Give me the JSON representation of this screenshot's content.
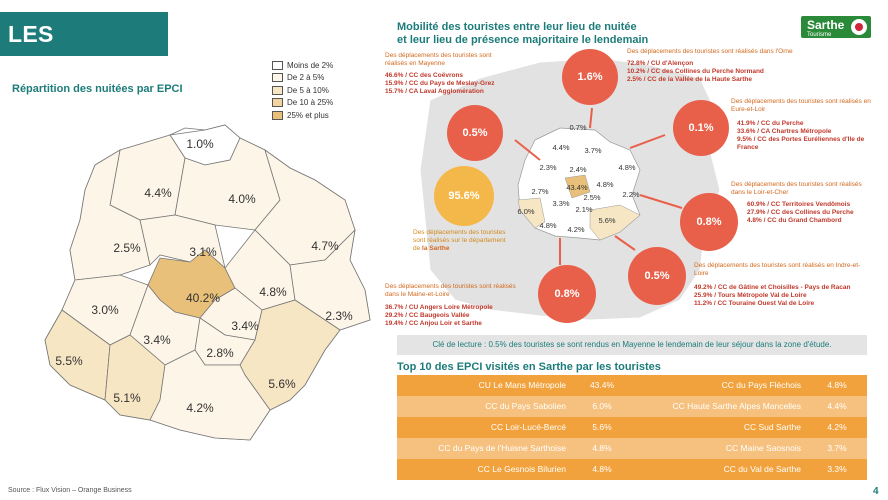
{
  "title": "LES TOURISTES",
  "left_subtitle": "Répartition des nuitées par EPCI",
  "legend": [
    {
      "label": "Moins de 2%",
      "color": "#ffffff"
    },
    {
      "label": "De 2 à 5%",
      "color": "#fdf6e8"
    },
    {
      "label": "De 5 à 10%",
      "color": "#f7e6c4"
    },
    {
      "label": "De 10 à 25%",
      "color": "#f3d4a0"
    },
    {
      "label": "25% et plus",
      "color": "#e8c07a"
    }
  ],
  "map_values": [
    "1.0%",
    "4.4%",
    "4.0%",
    "2.5%",
    "3.1%",
    "4.7%",
    "40.2%",
    "4.8%",
    "3.0%",
    "2.3%",
    "3.4%",
    "3.4%",
    "2.8%",
    "5.5%",
    "5.1%",
    "5.6%",
    "4.2%"
  ],
  "right_title_line1": "Mobilité des touristes entre leur lieu de nuitée",
  "right_title_line2": "et leur lieu de présence majoritaire le lendemain",
  "logo": {
    "name": "Sarthe",
    "tagline": "Tourisme"
  },
  "mini_map_values": [
    "0.7%",
    "4.4%",
    "3.7%",
    "2.3%",
    "2.4%",
    "4.8%",
    "2.7%",
    "43.4%",
    "4.8%",
    "3.3%",
    "2.5%",
    "2.2%",
    "6.0%",
    "2.1%",
    "5.6%",
    "4.8%",
    "4.2%"
  ],
  "circles": {
    "mayenne": "0.5%",
    "orne": "1.6%",
    "eure_loir": "0.1%",
    "sarthe": "95.6%",
    "loir_cher": "0.8%",
    "indre_loire": "0.5%",
    "maine_loire": "0.8%"
  },
  "notes": {
    "mayenne_head": "Des déplacements des touristes sont réalisés en Mayenne",
    "mayenne_lines": [
      "46.6% / CC des Coëvrons",
      "15.9% / CC du Pays de Meslay-Grez",
      "15.7% / CA Laval Agglomération"
    ],
    "orne_head": "Des déplacements des touristes sont réalisés dans l'Orne",
    "orne_lines": [
      "72.8% / CU d'Alençon",
      "10.2% / CC des Collines du Perche Normand",
      "2.5% / CC de la Vallée de la Haute Sarthe"
    ],
    "eure_head": "Des déplacements des touristes sont réalisés en Eure-et-Loir",
    "eure_lines": [
      "41.9% / CC du Perche",
      "33.6% / CA Chartres Métropole",
      "9.5% / CC des Portes Euréliennes d'Ile de France"
    ],
    "sarthe_head": "Des déplacements des touristes sont réalisés sur le département de",
    "sarthe_emph": "la Sarthe",
    "loir_head": "Des déplacements des touristes sont réalisés dans le Loir-et-Cher",
    "loir_lines": [
      "60.9% / CC Territoires Vendômois",
      "27.9% / CC des Collines du Perche",
      "4.8% / CC du Grand Chambord"
    ],
    "indre_head": "Des déplacements des touristes sont réalisés en Indre-et-Loire",
    "indre_lines": [
      "49.2% / CC de Gâtine et Choisilles - Pays de Racan",
      "25.9% / Tours Métropole Val de Loire",
      "11.2% / CC Touraine Ouest Val de Loire"
    ],
    "maine_head": "Des déplacements des touristes sont réalisés dans le Maine-et-Loire",
    "maine_lines": [
      "36.7% / CU Angers Loire Métropole",
      "29.2% / CC Baugeois Vallée",
      "19.4% / CC Anjou Loir et Sarthe"
    ]
  },
  "lecture": "Clé de lecture : 0.5% des touristes se sont rendus en Mayenne le lendemain de leur séjour dans la zone d'étude.",
  "top10_title": "Top 10 des EPCI visités en Sarthe par les touristes",
  "top10": [
    {
      "left_name": "CU Le Mans Métropole",
      "left_val": "43.4%",
      "right_name": "CC du Pays Fléchois",
      "right_val": "4.8%"
    },
    {
      "left_name": "CC du Pays Sabolien",
      "left_val": "6.0%",
      "right_name": "CC Haute Sarthe Alpes Mancelles",
      "right_val": "4.4%"
    },
    {
      "left_name": "CC Loir-Lucé-Bercé",
      "left_val": "5.6%",
      "right_name": "CC Sud Sarthe",
      "right_val": "4.2%"
    },
    {
      "left_name": "CC du Pays de l'Huisne Sarthoise",
      "left_val": "4.8%",
      "right_name": "CC Maine Saosnois",
      "right_val": "3.7%"
    },
    {
      "left_name": "CC Le Gesnois Bilurien",
      "left_val": "4.8%",
      "right_name": "CC du Val de Sarthe",
      "right_val": "3.3%"
    }
  ],
  "source": "Source : Flux Vision – Orange Business",
  "page_number": "4"
}
